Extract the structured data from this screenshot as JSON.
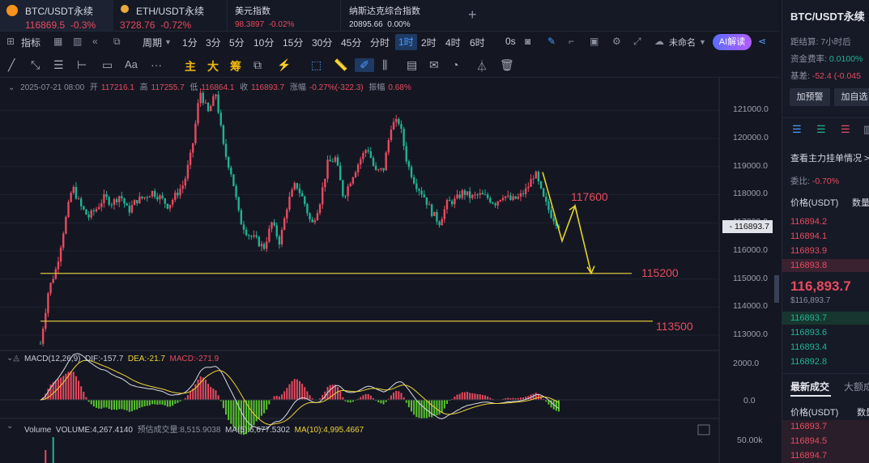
{
  "tabs": [
    {
      "name": "BTC/USDT永续",
      "price": "116869.5",
      "change": "-0.3%"
    },
    {
      "name": "ETH/USDT永续",
      "price": "3728.76",
      "change": "-0.72%"
    },
    {
      "name": "美元指数",
      "price": "98.3897",
      "change": "-0.02%"
    },
    {
      "name": "纳斯达克综合指数",
      "price": "20895.66",
      "change": "0.00%"
    }
  ],
  "toolbar": {
    "indicator": "指标",
    "period": "周期",
    "intervals": [
      "1分",
      "3分",
      "5分",
      "10分",
      "15分",
      "30分",
      "45分",
      "分时",
      "1时",
      "2时",
      "4时",
      "6时",
      "0s"
    ],
    "selected_interval": "1时",
    "unnamed": "未命名",
    "ai": "AI解读"
  },
  "drawbar": {
    "main": "主",
    "big": "大",
    "chip": "筹",
    "text": "Aa"
  },
  "ohlc": {
    "date": "2025-07-21 08:00",
    "open_label": "开",
    "open": "117216.1",
    "high_label": "高",
    "high": "117255.7",
    "low_label": "低",
    "low": "116864.1",
    "close_label": "收",
    "close": "116893.7",
    "change_label": "涨幅",
    "change": "-0.27%(-322.3)",
    "amp_label": "振幅",
    "amp": "0.68%"
  },
  "chart_data": {
    "type": "candlestick",
    "y_ticks": [
      "121000.0",
      "120000.0",
      "119000.0",
      "118000.0",
      "117000.0",
      "116000.0",
      "115000.0",
      "114000.0",
      "113000.0"
    ],
    "ylim": [
      112600,
      121700
    ],
    "last_price": "116893.7",
    "levels": [
      {
        "label": "115200",
        "value": 115200
      },
      {
        "label": "113500",
        "value": 113500
      }
    ],
    "annotation": {
      "label": "117600",
      "value": 117600
    },
    "close_path": [
      112700,
      114600,
      115400,
      116900,
      118300,
      117600,
      117200,
      117500,
      117900,
      117700,
      118000,
      117400,
      117800,
      117900,
      118100,
      117900,
      117600,
      118000,
      118400,
      119600,
      121700,
      120900,
      121600,
      119600,
      118700,
      117100,
      116600,
      116400,
      116100,
      117000,
      116300,
      117700,
      118400,
      117800,
      116900,
      117700,
      119100,
      119300,
      117900,
      118600,
      119200,
      119700,
      118800,
      118900,
      120500,
      120600,
      119100,
      118400,
      118000,
      117400,
      117000,
      117700,
      117800,
      118100,
      117900,
      118000,
      117900,
      117700,
      118000,
      117800,
      117900,
      118200,
      118800,
      117900,
      117300,
      116900
    ],
    "macd": {
      "label": "MACD(12,26,9)",
      "dif_label": "DIF",
      "dif": "-157.7",
      "dea_label": "DEA",
      "dea": "-21.7",
      "macd_label": "MACD",
      "macd": "-271.9",
      "y_ticks": [
        "2000.0",
        "0.0"
      ]
    },
    "volume": {
      "label": "Volume",
      "volume_label": "VOLUME",
      "volume": "4,267.4140",
      "est_label": "预估成交量",
      "est": "8,515.9038",
      "ma5_label": "MA(5)",
      "ma5": "6,677.5302",
      "ma10_label": "MA(10)",
      "ma10": "4,995.4667",
      "y_tick": "50.00k"
    }
  },
  "colors": {
    "up": "#e84a5f",
    "down": "#1fb393",
    "level_line": "#d9c53a",
    "arrow": "#e6d22a"
  },
  "right": {
    "symbol": "BTC/USDT永续",
    "settle_label": "距结算:",
    "settle": "7小时后",
    "funding_label": "资金费率:",
    "funding": "0.0100%",
    "basis_label": "基差:",
    "basis": "-52.4 (-0.045",
    "alert": "加预警",
    "watch": "加自选",
    "orders_link": "查看主力挂单情况 >",
    "ratio_label": "委比:",
    "ratio": "-0.70%",
    "col_price": "价格(USDT)",
    "col_qty": "数量",
    "asks": [
      "116894.2",
      "116894.1",
      "116893.9",
      "116893.8"
    ],
    "mid_price": "116,893.7",
    "mid_sub": "$116,893.7",
    "bids": [
      "116893.7",
      "116893.6",
      "116893.4",
      "116892.8"
    ],
    "trades_tab": "最新成交",
    "big_tab": "大额成",
    "trades_col_price": "价格(USDT)",
    "trades_col_qty": "数量",
    "trades": [
      "116893.7",
      "116894.5",
      "116894.7"
    ]
  }
}
